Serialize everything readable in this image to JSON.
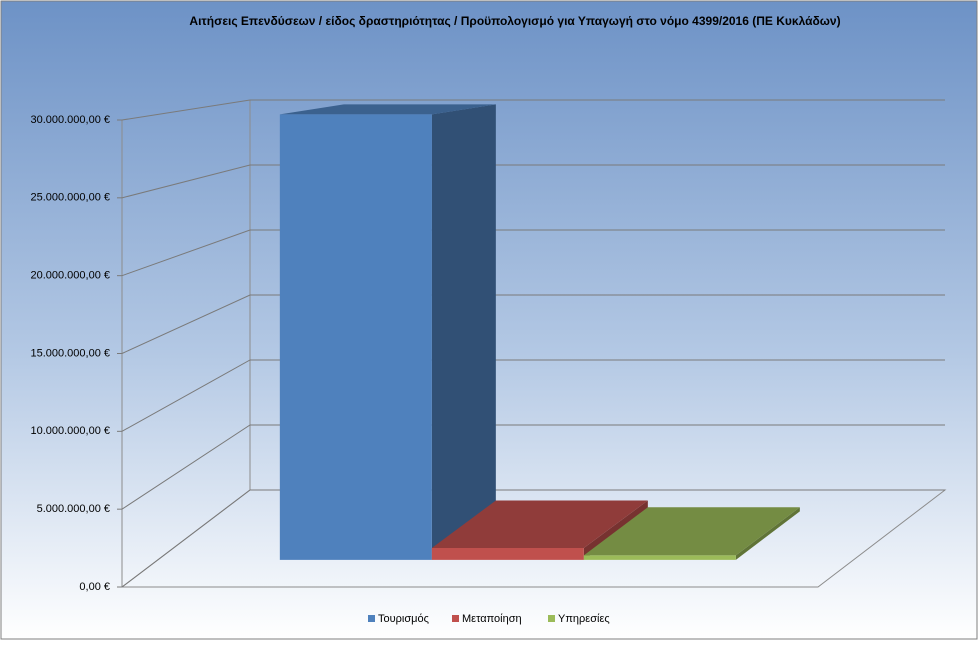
{
  "chart_data": {
    "type": "bar3d",
    "title": "Αιτήσεις Επενδύσεων / είδος δραστηριότητας / Προϋπολογισμό για Υπαγωγή στο νόμο 4399/2016  (ΠΕ Κυκλάδων)",
    "categories": [
      "Τουρισμός",
      "Μεταποίηση",
      "Υπηρεσίες"
    ],
    "values": [
      30000000,
      800000,
      300000
    ],
    "colors": [
      "#4f81bd",
      "#c0504d",
      "#9bbb59"
    ],
    "ylim": [
      0,
      30000000
    ],
    "yticks": [
      {
        "value": 0,
        "label": "0,00 €"
      },
      {
        "value": 5000000,
        "label": "5.000.000,00 €"
      },
      {
        "value": 10000000,
        "label": "10.000.000,00 €"
      },
      {
        "value": 15000000,
        "label": "15.000.000,00 €"
      },
      {
        "value": 20000000,
        "label": "20.000.000,00 €"
      },
      {
        "value": 25000000,
        "label": "25.000.000,00 €"
      },
      {
        "value": 30000000,
        "label": "30.000.000,00 €"
      }
    ],
    "grid": true
  }
}
